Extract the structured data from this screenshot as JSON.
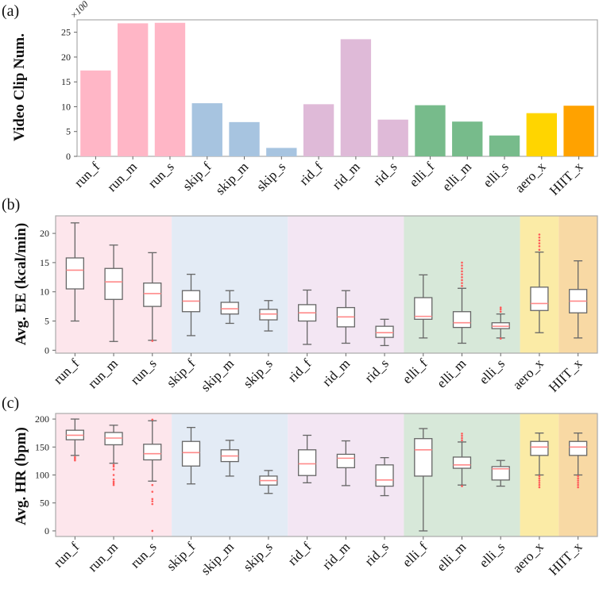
{
  "chart_data": [
    {
      "type": "bar",
      "panel_label": "(a)",
      "ylabel": "Video Clip Num.",
      "y_multiplier": "×100",
      "ylim": [
        0,
        27.5
      ],
      "yticks": [
        0,
        5,
        10,
        15,
        20,
        25
      ],
      "categories": [
        "run_f",
        "run_m",
        "run_s",
        "skip_f",
        "skip_m",
        "skip_s",
        "rid_f",
        "rid_m",
        "rid_s",
        "elli_f",
        "elli_m",
        "elli_s",
        "aero_x",
        "HIIT_x"
      ],
      "values": [
        17.3,
        26.8,
        26.9,
        10.7,
        6.9,
        1.7,
        10.5,
        23.6,
        7.4,
        10.3,
        7.0,
        4.2,
        8.7,
        10.2
      ],
      "colors": [
        "#ffb6c6",
        "#ffb6c6",
        "#ffb6c6",
        "#a7c4e0",
        "#a7c4e0",
        "#a7c4e0",
        "#dfbad8",
        "#dfbad8",
        "#dfbad8",
        "#77bb8b",
        "#77bb8b",
        "#77bb8b",
        "#ffd500",
        "#ffa200"
      ]
    },
    {
      "type": "box",
      "panel_label": "(b)",
      "ylabel": "Avg. EE (kcal/min)",
      "ylim": [
        -0.5,
        23
      ],
      "yticks": [
        0,
        5,
        10,
        15,
        20
      ],
      "categories": [
        "run_f",
        "run_m",
        "run_s",
        "skip_f",
        "skip_m",
        "skip_s",
        "rid_f",
        "rid_m",
        "rid_s",
        "elli_f",
        "elli_m",
        "elli_s",
        "aero_x",
        "HIIT_x"
      ],
      "boxes": [
        [
          5,
          10.5,
          13.7,
          15.8,
          21.8
        ],
        [
          1.5,
          8.7,
          11.7,
          14,
          18
        ],
        [
          1.7,
          7.5,
          9.7,
          11.5,
          16.7
        ],
        [
          2.5,
          6.6,
          8.4,
          10.2,
          13
        ],
        [
          4.6,
          6.2,
          7.1,
          8.2,
          10.2
        ],
        [
          3.3,
          5.2,
          6.2,
          7.0,
          8.5
        ],
        [
          1,
          5,
          6.4,
          7.8,
          10.3
        ],
        [
          1.2,
          4.0,
          5.7,
          7.3,
          10.2
        ],
        [
          0.8,
          2.2,
          3.0,
          4.1,
          5.3
        ],
        [
          2.1,
          5.3,
          5.8,
          9.0,
          12.9
        ],
        [
          1.2,
          3.9,
          4.7,
          6.6,
          10.6
        ],
        [
          2.1,
          3.7,
          4.1,
          4.7,
          6.2
        ],
        [
          3,
          6.8,
          8,
          10.8,
          16.8
        ],
        [
          2.1,
          6.4,
          8.4,
          10.4,
          15.3
        ]
      ],
      "outliers": [
        [],
        [],
        [
          1.6
        ],
        [],
        [],
        [],
        [],
        [],
        [],
        [],
        [
          11,
          11.5,
          12,
          12.5,
          13,
          13.5,
          14,
          14.5,
          15
        ],
        [
          2,
          6.6,
          7,
          7.3
        ],
        [
          17.2,
          17.8,
          18.3,
          18.8,
          19.3,
          19.8
        ],
        []
      ]
    },
    {
      "type": "box",
      "panel_label": "(c)",
      "ylabel": "Avg. HR (bpm)",
      "ylim": [
        -10,
        210
      ],
      "yticks": [
        0,
        50,
        100,
        150,
        200
      ],
      "categories": [
        "run_f",
        "run_m",
        "run_s",
        "skip_f",
        "skip_m",
        "skip_s",
        "rid_f",
        "rid_m",
        "rid_s",
        "elli_f",
        "elli_m",
        "elli_s",
        "aero_x",
        "HIIT_x"
      ],
      "boxes": [
        [
          135,
          163,
          171,
          180,
          200
        ],
        [
          121,
          154,
          166,
          176,
          189
        ],
        [
          89,
          127,
          138,
          155,
          197
        ],
        [
          84,
          116,
          140,
          160,
          185
        ],
        [
          98,
          124,
          134,
          145,
          162
        ],
        [
          67,
          82,
          90,
          98,
          108
        ],
        [
          86,
          99,
          120,
          145,
          171
        ],
        [
          81,
          113,
          130,
          137,
          161
        ],
        [
          63,
          80,
          91,
          118,
          131
        ],
        [
          0,
          98,
          145,
          165,
          183
        ],
        [
          82,
          112,
          118,
          132,
          159
        ],
        [
          80,
          91,
          111,
          115,
          126
        ],
        [
          100,
          135,
          150,
          160,
          175
        ],
        [
          100,
          135,
          150,
          160,
          175
        ]
      ],
      "outliers": [
        [
          126,
          129,
          132
        ],
        [
          82,
          85,
          88,
          92,
          100,
          110,
          115,
          118
        ],
        [
          0,
          48,
          53,
          57,
          70,
          82,
          199
        ],
        [],
        [],
        [],
        [],
        [],
        [],
        [],
        [
          80,
          162,
          166,
          170,
          174
        ],
        [],
        [
          78,
          82,
          86,
          90,
          94,
          98
        ],
        [
          78,
          82,
          86,
          90,
          94,
          98
        ]
      ]
    }
  ],
  "band_colors": [
    "#fde6ec",
    "#e3ebf5",
    "#f3e6f3",
    "#d7e8d9",
    "#fbeba6",
    "#f8d9a4"
  ]
}
